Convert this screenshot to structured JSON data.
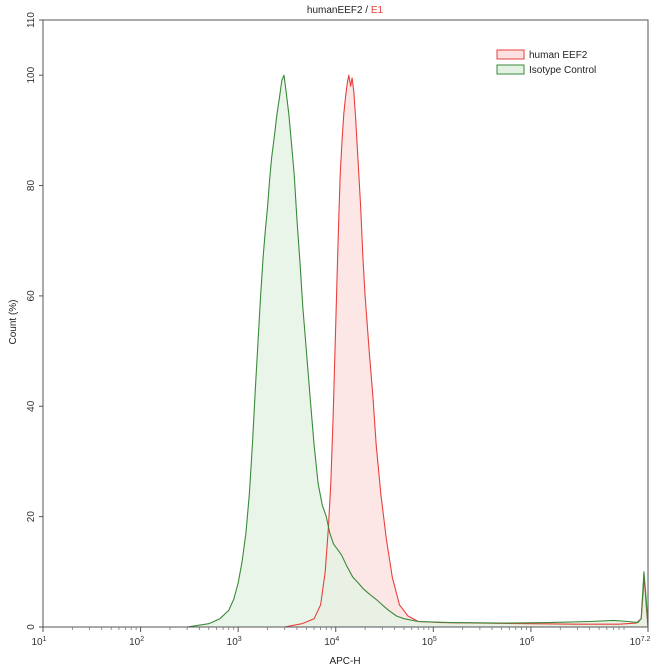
{
  "chart_data": {
    "type": "area",
    "title_parts": [
      "humanEEF2 / ",
      "E1"
    ],
    "title_colors": [
      "#222222",
      "#e8403c"
    ],
    "xlabel": "APC-H",
    "ylabel": "Count (%)",
    "x_scale": "log10",
    "xlim": [
      10,
      15848932
    ],
    "ylim": [
      0,
      110
    ],
    "x_ticks": [
      {
        "value": 10,
        "base": "10",
        "exp": "1"
      },
      {
        "value": 100,
        "base": "10",
        "exp": "2"
      },
      {
        "value": 1000,
        "base": "10",
        "exp": "3"
      },
      {
        "value": 10000,
        "base": "10",
        "exp": "4"
      },
      {
        "value": 100000,
        "base": "10",
        "exp": "5"
      },
      {
        "value": 1000000,
        "base": "10",
        "exp": "6"
      },
      {
        "value": 15848932,
        "base": "10",
        "exp": "7.2"
      }
    ],
    "y_ticks": [
      {
        "value": 0,
        "label": "0"
      },
      {
        "value": 20,
        "label": "20"
      },
      {
        "value": 40,
        "label": "40"
      },
      {
        "value": 60,
        "label": "60"
      },
      {
        "value": 80,
        "label": "80"
      },
      {
        "value": 100,
        "label": "100"
      },
      {
        "value": 110,
        "label": "110"
      }
    ],
    "grid": false,
    "legend_position": "top-right",
    "series": [
      {
        "name": "human EEF2",
        "stroke": "#e8403c",
        "fill": "#fde0e0",
        "points": [
          [
            3000,
            0
          ],
          [
            4500,
            0.6
          ],
          [
            6000,
            1.5
          ],
          [
            7000,
            4
          ],
          [
            7800,
            10
          ],
          [
            8400,
            18
          ],
          [
            8900,
            26
          ],
          [
            9400,
            38
          ],
          [
            9900,
            52
          ],
          [
            10300,
            63
          ],
          [
            10700,
            73
          ],
          [
            11100,
            82
          ],
          [
            11600,
            88
          ],
          [
            12100,
            93
          ],
          [
            12600,
            96
          ],
          [
            13100,
            98.5
          ],
          [
            13600,
            100
          ],
          [
            14200,
            98
          ],
          [
            14700,
            99.5
          ],
          [
            15300,
            97
          ],
          [
            16000,
            92
          ],
          [
            17000,
            84
          ],
          [
            18000,
            76
          ],
          [
            19000,
            67
          ],
          [
            20000,
            60
          ],
          [
            22000,
            50
          ],
          [
            24000,
            42
          ],
          [
            26000,
            33
          ],
          [
            29000,
            24
          ],
          [
            33000,
            16
          ],
          [
            38000,
            9
          ],
          [
            45000,
            4
          ],
          [
            55000,
            2
          ],
          [
            70000,
            1
          ],
          [
            120000,
            0.8
          ],
          [
            300000,
            0.7
          ],
          [
            1000000,
            0.6
          ],
          [
            3000000,
            0.5
          ],
          [
            8000000,
            0.5
          ],
          [
            12000000,
            0.7
          ],
          [
            13500000,
            1.5
          ],
          [
            14500000,
            9
          ],
          [
            15200000,
            4
          ],
          [
            15848932,
            0
          ]
        ]
      },
      {
        "name": "Isotype Control",
        "stroke": "#3a8a3a",
        "fill": "#e4f2e4",
        "points": [
          [
            300,
            0
          ],
          [
            500,
            0.6
          ],
          [
            650,
            1.5
          ],
          [
            800,
            3
          ],
          [
            900,
            5
          ],
          [
            1000,
            8
          ],
          [
            1100,
            12
          ],
          [
            1200,
            17
          ],
          [
            1300,
            24
          ],
          [
            1400,
            33
          ],
          [
            1500,
            43
          ],
          [
            1600,
            52
          ],
          [
            1700,
            60
          ],
          [
            1800,
            67
          ],
          [
            1900,
            72
          ],
          [
            2000,
            76
          ],
          [
            2100,
            81
          ],
          [
            2200,
            85
          ],
          [
            2350,
            89
          ],
          [
            2500,
            93
          ],
          [
            2650,
            96
          ],
          [
            2800,
            99
          ],
          [
            2950,
            100
          ],
          [
            3100,
            97
          ],
          [
            3300,
            93
          ],
          [
            3500,
            88
          ],
          [
            3750,
            82
          ],
          [
            4000,
            74
          ],
          [
            4300,
            66
          ],
          [
            4600,
            58
          ],
          [
            5000,
            50
          ],
          [
            5500,
            41
          ],
          [
            6000,
            33
          ],
          [
            6600,
            26
          ],
          [
            7300,
            22
          ],
          [
            8000,
            20
          ],
          [
            8700,
            17
          ],
          [
            9500,
            15
          ],
          [
            10500,
            14
          ],
          [
            11500,
            13
          ],
          [
            13000,
            11
          ],
          [
            15000,
            9
          ],
          [
            17000,
            8
          ],
          [
            19000,
            7
          ],
          [
            22000,
            6
          ],
          [
            26000,
            5
          ],
          [
            30000,
            4
          ],
          [
            35000,
            3
          ],
          [
            42000,
            2
          ],
          [
            50000,
            1.5
          ],
          [
            70000,
            1
          ],
          [
            150000,
            0.8
          ],
          [
            500000,
            0.7
          ],
          [
            1500000,
            0.8
          ],
          [
            4000000,
            1
          ],
          [
            7000000,
            1.2
          ],
          [
            10000000,
            1
          ],
          [
            12500000,
            0.8
          ],
          [
            13500000,
            1.5
          ],
          [
            14400000,
            10
          ],
          [
            15200000,
            5
          ],
          [
            15848932,
            0
          ]
        ]
      }
    ]
  }
}
